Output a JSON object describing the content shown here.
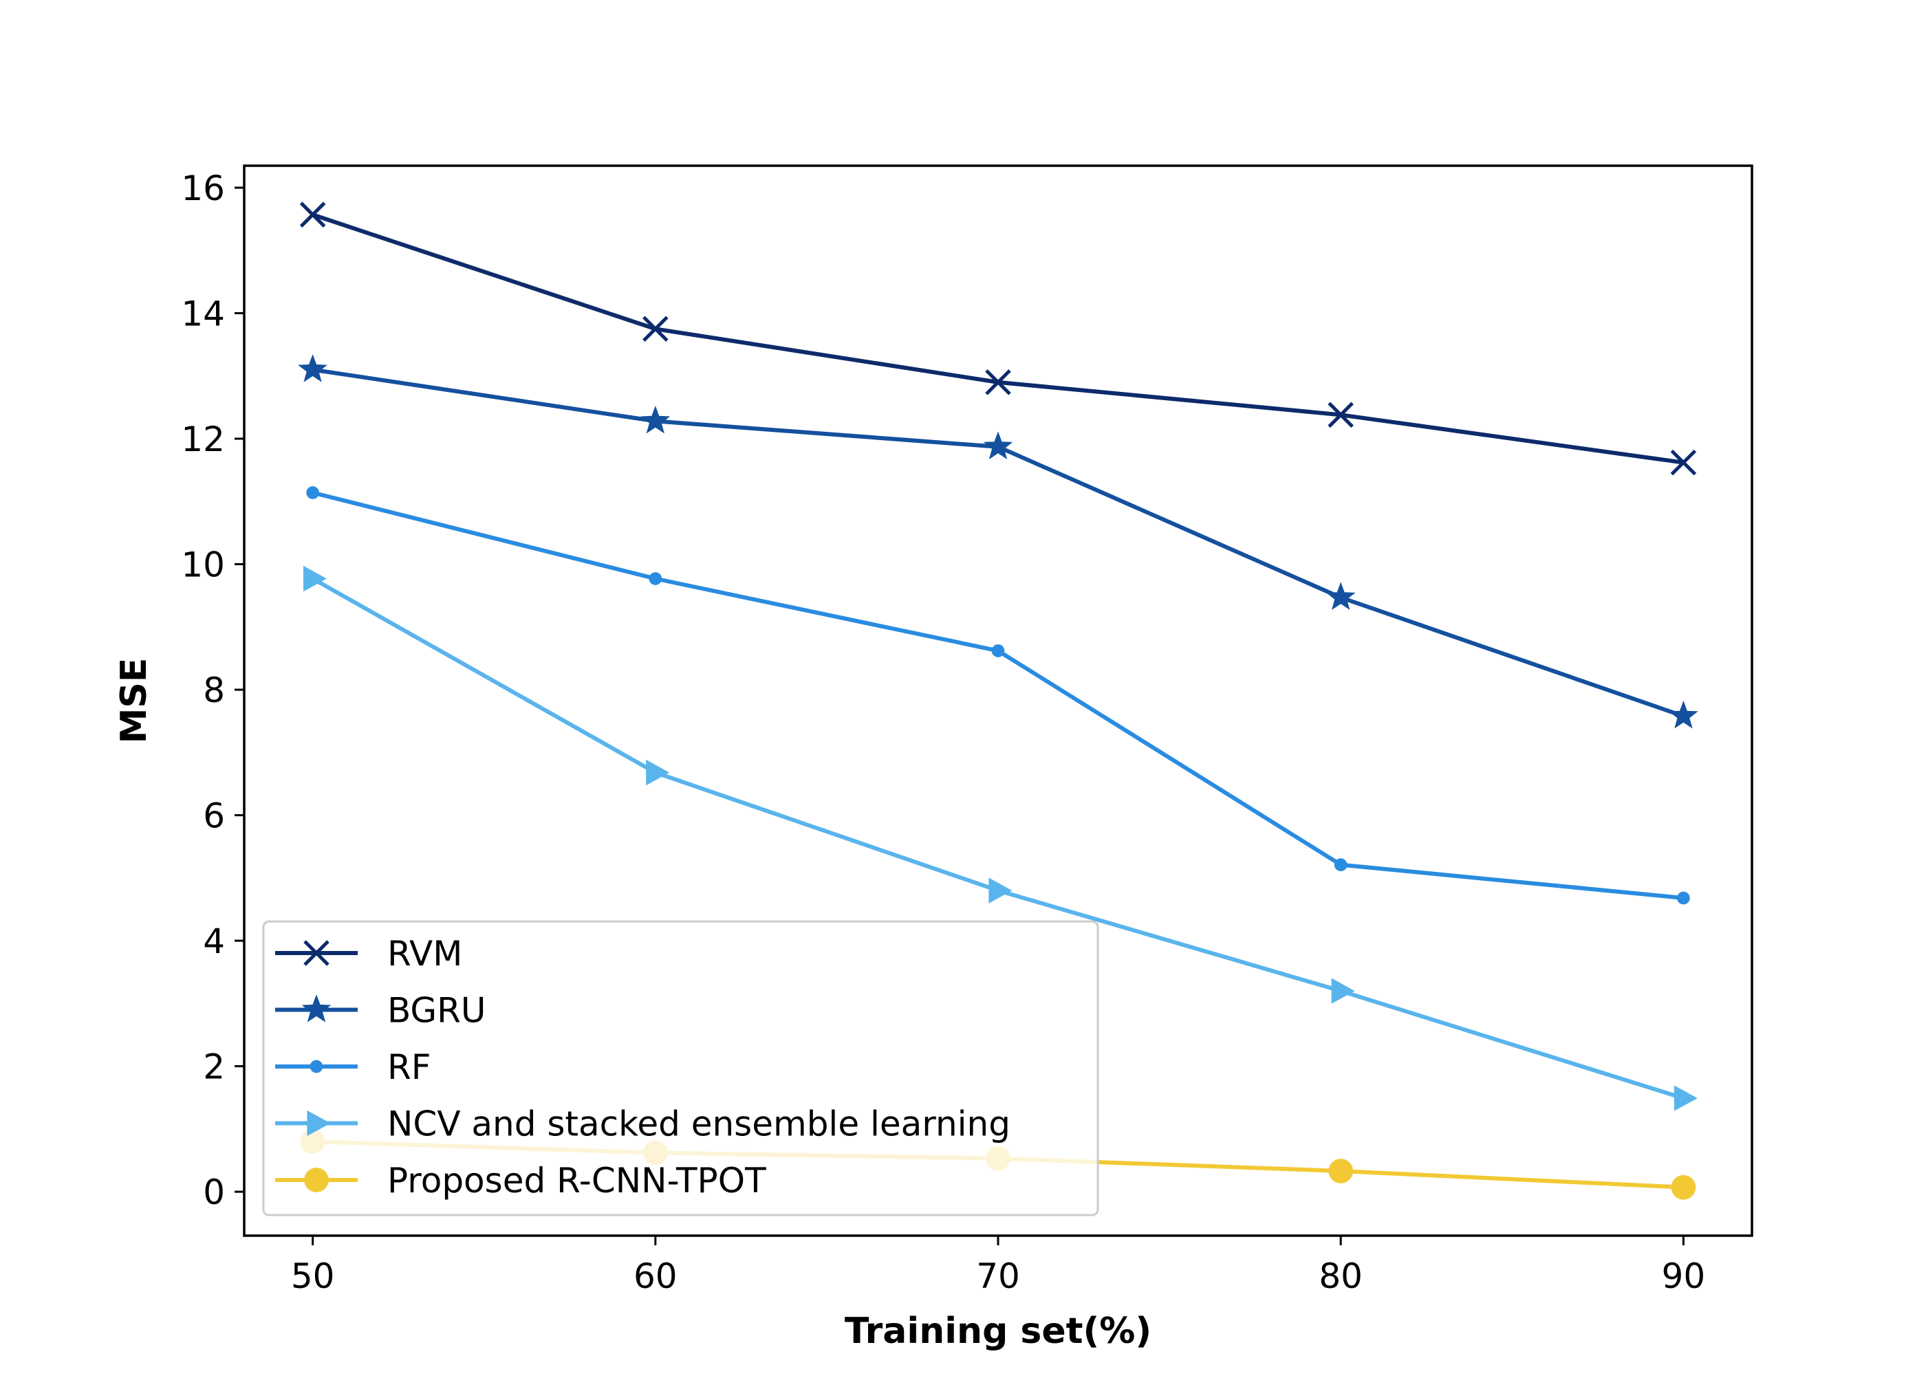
{
  "chart_data": {
    "type": "line",
    "title": "",
    "xlabel": "Training set(%)",
    "ylabel": "MSE",
    "x": [
      50,
      60,
      70,
      80,
      90
    ],
    "xlim": [
      48,
      92
    ],
    "ylim": [
      -0.7,
      16.35
    ],
    "xticks": [
      50,
      60,
      70,
      80,
      90
    ],
    "yticks": [
      0,
      2,
      4,
      6,
      8,
      10,
      12,
      14,
      16
    ],
    "grid": false,
    "legend_position": "lower-left",
    "series": [
      {
        "name": "RVM",
        "color": "#0d2a6b",
        "marker": "x",
        "values": [
          15.57,
          13.75,
          12.9,
          12.38,
          11.62
        ]
      },
      {
        "name": "BGRU",
        "color": "#14509e",
        "marker": "star",
        "values": [
          13.1,
          12.28,
          11.87,
          9.47,
          7.58
        ]
      },
      {
        "name": "RF",
        "color": "#2a8ce0",
        "marker": "dot",
        "values": [
          11.14,
          9.77,
          8.62,
          5.21,
          4.68
        ]
      },
      {
        "name": "NCV and stacked ensemble learning",
        "color": "#5ab4ec",
        "marker": "triangle-right",
        "values": [
          9.77,
          6.68,
          4.8,
          3.2,
          1.49
        ]
      },
      {
        "name": "Proposed R-CNN-TPOT",
        "color": "#f2c935",
        "marker": "circle",
        "values": [
          0.8,
          0.62,
          0.53,
          0.33,
          0.07
        ]
      }
    ]
  }
}
